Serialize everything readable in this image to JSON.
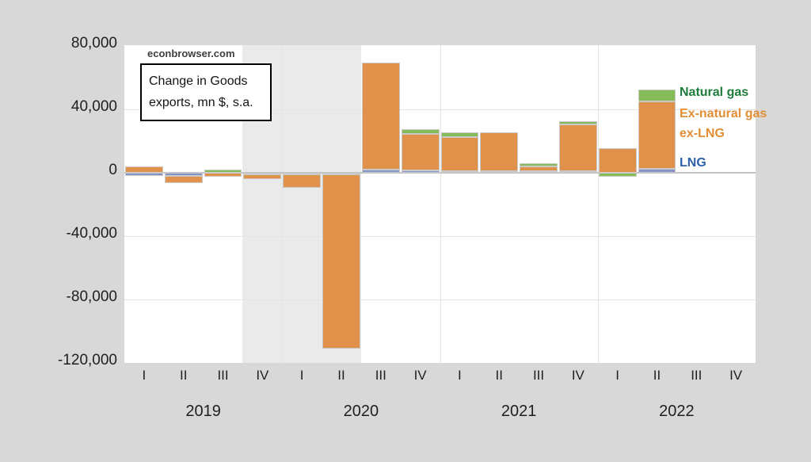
{
  "source_label": "econbrowser.com",
  "title_box": {
    "line1": "Change in Goods",
    "line2": "exports, mn $, s.a."
  },
  "chart_data": {
    "type": "bar",
    "stacked": true,
    "title": "Change in Goods exports, mn $, s.a.",
    "xlabel": "",
    "ylabel": "mn $",
    "ylim": [
      -120000,
      80000
    ],
    "grid": true,
    "categories": [
      "2019 I",
      "2019 II",
      "2019 III",
      "2019 IV",
      "2020 I",
      "2020 II",
      "2020 III",
      "2020 IV",
      "2021 I",
      "2021 II",
      "2021 III",
      "2021 IV",
      "2022 I",
      "2022 II",
      "2022 III",
      "2022 IV"
    ],
    "x_quarter_labels": [
      "I",
      "II",
      "III",
      "IV",
      "I",
      "II",
      "III",
      "IV",
      "I",
      "II",
      "III",
      "IV",
      "I",
      "II",
      "III",
      "IV"
    ],
    "x_year_labels": [
      "2019",
      "2020",
      "2021",
      "2022"
    ],
    "ytick_values": [
      80000,
      40000,
      0,
      -40000,
      -80000,
      -120000
    ],
    "ytick_labels": [
      "80,000",
      "40,000",
      "0",
      "-40,000",
      "-80,000",
      "-120,000"
    ],
    "series": [
      {
        "name": "LNG",
        "color": "#8494c8",
        "values": [
          -2200,
          -2100,
          0,
          -700,
          -600,
          -500,
          1900,
          1400,
          1200,
          1200,
          1000,
          1200,
          0,
          2500,
          null,
          null
        ]
      },
      {
        "name": "Ex-natural gas ex-LNG",
        "color": "#e0924a",
        "values": [
          4000,
          -4600,
          -2400,
          -3100,
          -8300,
          -109800,
          67500,
          22900,
          21500,
          24200,
          2800,
          29200,
          15300,
          42500,
          null,
          null
        ]
      },
      {
        "name": "Natural gas",
        "color": "#85bc57",
        "values": [
          0,
          0,
          2000,
          0,
          0,
          0,
          0,
          3300,
          3000,
          0,
          2000,
          2200,
          -2400,
          7500,
          null,
          null
        ]
      }
    ],
    "recession_shading": {
      "from": "2019 IV",
      "to": "2020 II"
    },
    "legend_position": "right-of-last-bar",
    "legend": [
      {
        "label": "Natural gas",
        "color": "#1e7c3c"
      },
      {
        "label": "Ex-natural gas",
        "color": "#e28e35"
      },
      {
        "label": "ex-LNG",
        "color": "#e28e35"
      },
      {
        "label": "LNG",
        "color": "#2e5fa8"
      }
    ]
  }
}
